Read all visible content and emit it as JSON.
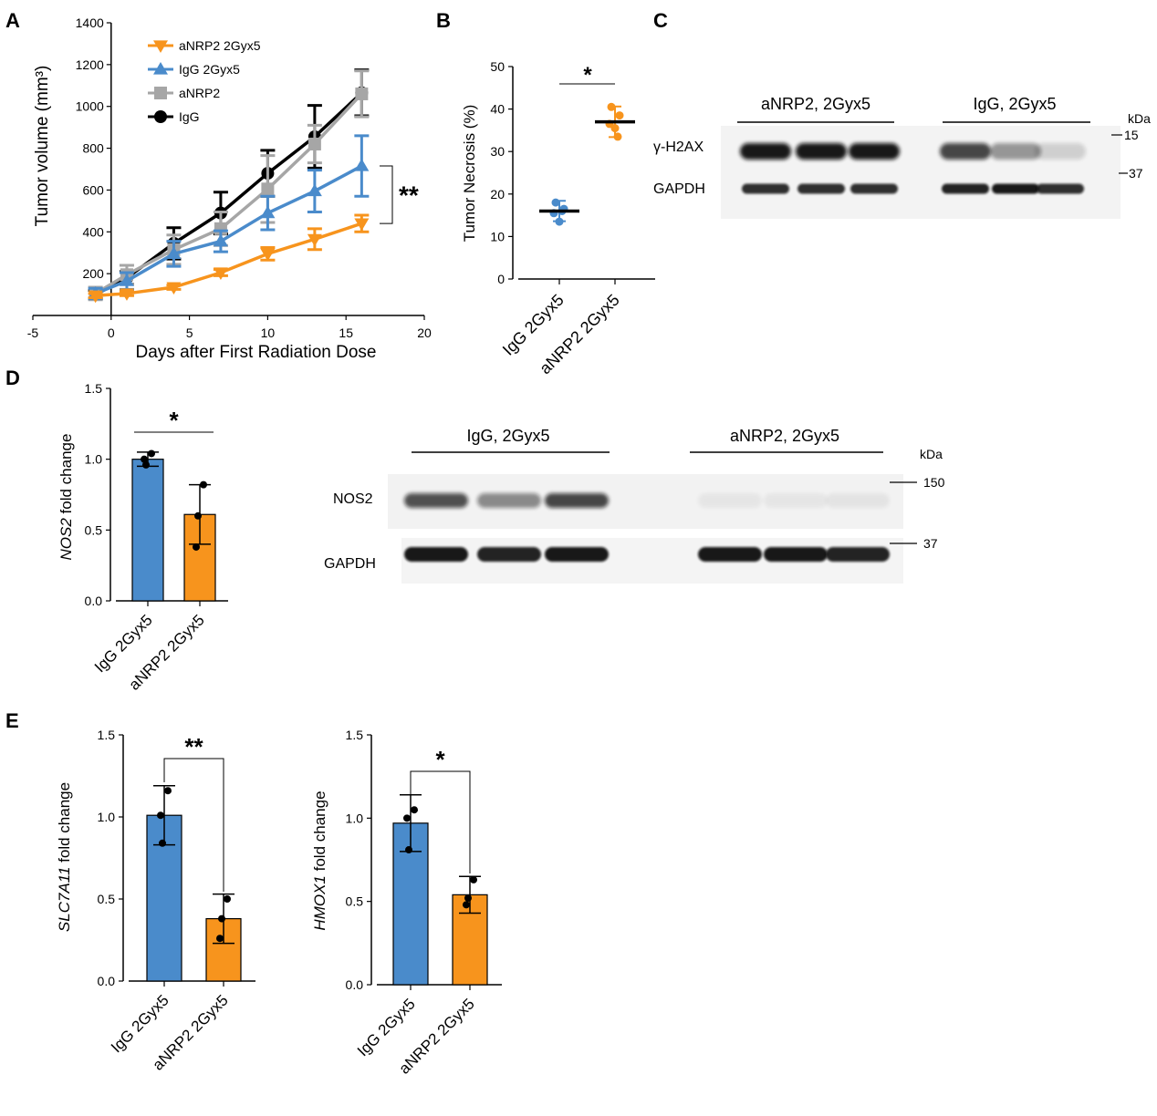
{
  "colors": {
    "orange": "#f7941d",
    "blue": "#4a8bcb",
    "grey": "#a6a6a6",
    "black": "#000000"
  },
  "panels": {
    "A": "A",
    "B": "B",
    "C": "C",
    "D": "D",
    "E": "E"
  },
  "chart_data": [
    {
      "id": "A",
      "type": "line",
      "xlabel": "Days after First Radiation Dose",
      "ylabel": "Tumor volume (mm³)",
      "xlim": [
        -5,
        20
      ],
      "ylim": [
        0,
        1400
      ],
      "xticks": [
        -5,
        0,
        5,
        10,
        15,
        20
      ],
      "yticks": [
        200,
        400,
        600,
        800,
        1000,
        1200,
        1400
      ],
      "significance": "**",
      "legend_position": "top-left",
      "series": [
        {
          "name": "aNRP2 2Gyx5",
          "color": "#f7941d",
          "marker": "triangle-down",
          "x": [
            -1,
            1,
            4,
            7,
            10,
            13,
            16
          ],
          "y": [
            95,
            105,
            135,
            205,
            295,
            365,
            440
          ],
          "err": [
            10,
            10,
            10,
            15,
            30,
            50,
            40
          ]
        },
        {
          "name": "IgG 2Gyx5",
          "color": "#4a8bcb",
          "marker": "triangle-up",
          "x": [
            -1,
            1,
            4,
            7,
            10,
            13,
            16
          ],
          "y": [
            105,
            165,
            295,
            355,
            490,
            595,
            715
          ],
          "err": [
            25,
            40,
            60,
            50,
            80,
            100,
            145
          ]
        },
        {
          "name": "aNRP2",
          "color": "#a6a6a6",
          "marker": "square",
          "x": [
            -1,
            1,
            4,
            7,
            10,
            13,
            16
          ],
          "y": [
            105,
            195,
            315,
            415,
            605,
            820,
            1060
          ],
          "err": [
            30,
            45,
            70,
            80,
            160,
            90,
            110
          ]
        },
        {
          "name": "IgG",
          "color": "#000000",
          "marker": "circle",
          "x": [
            -1,
            1,
            4,
            7,
            10,
            13,
            16
          ],
          "y": [
            100,
            180,
            345,
            490,
            680,
            855,
            1065
          ],
          "err": [
            20,
            30,
            75,
            100,
            110,
            150,
            110
          ]
        }
      ]
    },
    {
      "id": "B",
      "type": "scatter",
      "ylabel": "Tumor Necrosis (%)",
      "categories": [
        "IgG 2Gyx5",
        "aNRP2 2Gyx5"
      ],
      "ylim": [
        0,
        50
      ],
      "yticks": [
        0,
        10,
        20,
        30,
        40,
        50
      ],
      "significance": "*",
      "groups": [
        {
          "category": "IgG 2Gyx5",
          "color": "#4a8bcb",
          "mean": 16,
          "sd": 2.4,
          "points": [
            18,
            16.5,
            15.5,
            13.5,
            16
          ]
        },
        {
          "category": "aNRP2 2Gyx5",
          "color": "#f7941d",
          "mean": 37,
          "sd": 3.6,
          "points": [
            40.5,
            38.5,
            36.5,
            35.5,
            33.5
          ]
        }
      ]
    },
    {
      "id": "D",
      "type": "bar",
      "ylabel": "NOS2 fold change",
      "categories": [
        "IgG 2Gyx5",
        "aNRP2 2Gyx5"
      ],
      "values": [
        1.0,
        0.61
      ],
      "errors": [
        0.05,
        0.21
      ],
      "points": [
        [
          1.04,
          1.0,
          0.96
        ],
        [
          0.82,
          0.6,
          0.38
        ]
      ],
      "colors": [
        "#4a8bcb",
        "#f7941d"
      ],
      "ylim": [
        0,
        1.5
      ],
      "yticks": [
        0.0,
        0.5,
        1.0,
        1.5
      ],
      "significance": "*"
    },
    {
      "id": "E1",
      "type": "bar",
      "ylabel": "SLC7A11 fold change",
      "categories": [
        "IgG 2Gyx5",
        "aNRP2 2Gyx5"
      ],
      "values": [
        1.01,
        0.38
      ],
      "errors": [
        0.18,
        0.15
      ],
      "points": [
        [
          1.16,
          1.01,
          0.84
        ],
        [
          0.5,
          0.38,
          0.26
        ]
      ],
      "colors": [
        "#4a8bcb",
        "#f7941d"
      ],
      "ylim": [
        0,
        1.5
      ],
      "yticks": [
        0.0,
        0.5,
        1.0,
        1.5
      ],
      "significance": "**"
    },
    {
      "id": "E2",
      "type": "bar",
      "ylabel": "HMOX1 fold change",
      "categories": [
        "IgG 2Gyx5",
        "aNRP2 2Gyx5"
      ],
      "values": [
        0.97,
        0.54
      ],
      "errors": [
        0.17,
        0.11
      ],
      "points": [
        [
          1.05,
          1.0,
          0.81
        ],
        [
          0.63,
          0.52,
          0.48
        ]
      ],
      "colors": [
        "#4a8bcb",
        "#f7941d"
      ],
      "ylim": [
        0,
        1.5
      ],
      "yticks": [
        0.0,
        0.5,
        1.0,
        1.5
      ],
      "significance": "*"
    }
  ],
  "blots": {
    "C": {
      "group_left": "aNRP2, 2Gyx5",
      "group_right": "IgG, 2Gyx5",
      "kda_label": "kDa",
      "markers": [
        "15",
        "37"
      ],
      "rows": [
        "γ-H2AX",
        "GAPDH"
      ],
      "band_intensity": {
        "H2AX": [
          0.95,
          0.95,
          0.95,
          0.75,
          0.4,
          0.15
        ],
        "GAPDH": [
          0.85,
          0.85,
          0.85,
          0.9,
          0.95,
          0.85
        ]
      }
    },
    "D": {
      "group_left": "IgG, 2Gyx5",
      "group_right": "aNRP2, 2Gyx5",
      "kda_label": "kDa",
      "markers": [
        "150",
        "37"
      ],
      "rows": [
        "NOS2",
        "GAPDH"
      ],
      "band_intensity": {
        "NOS2": [
          0.7,
          0.45,
          0.75,
          0.05,
          0.05,
          0.06
        ],
        "GAPDH": [
          0.95,
          0.9,
          0.95,
          0.95,
          0.95,
          0.9
        ]
      }
    }
  }
}
